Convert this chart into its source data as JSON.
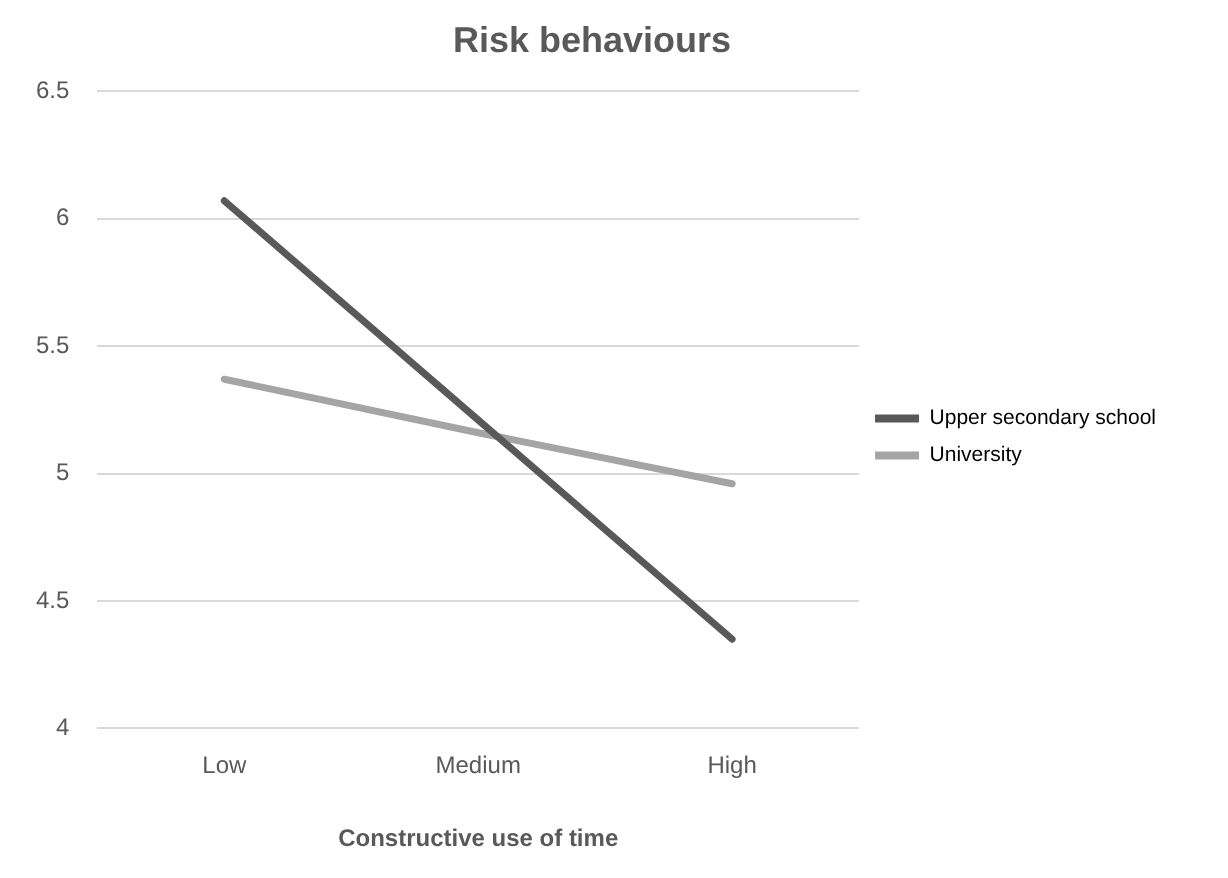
{
  "chart_data": {
    "type": "line",
    "title": "Risk behaviours",
    "xlabel": "Constructive use of time",
    "categories": [
      "Low",
      "Medium",
      "High"
    ],
    "series": [
      {
        "name": "Upper secondary school",
        "color": "#595959",
        "values": [
          6.07,
          5.21,
          4.35
        ]
      },
      {
        "name": "University",
        "color": "#a5a5a5",
        "values": [
          5.37,
          5.16,
          4.96
        ]
      }
    ],
    "ylim": [
      4,
      6.5
    ],
    "yticks": [
      4,
      4.5,
      5,
      5.5,
      6,
      6.5
    ],
    "grid": "y",
    "legend": "right",
    "marker": "none"
  }
}
